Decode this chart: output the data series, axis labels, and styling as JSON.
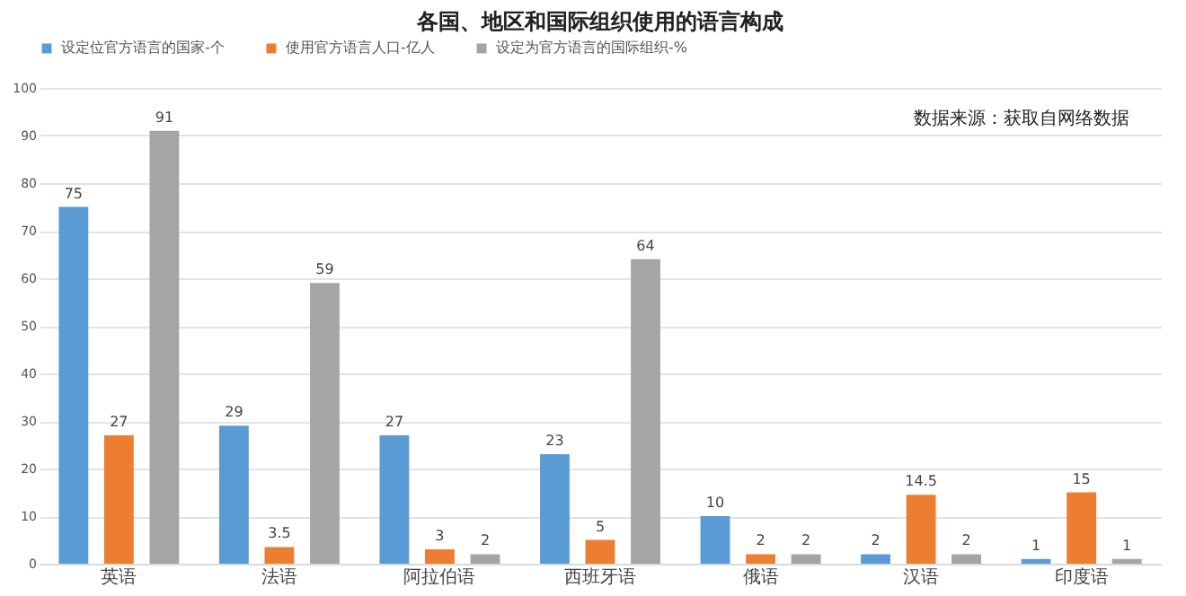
{
  "chart_data": {
    "type": "bar",
    "title": "各国、地区和国际组织使用的语言构成",
    "categories": [
      "英语",
      "法语",
      "阿拉伯语",
      "西班牙语",
      "俄语",
      "汉语",
      "印度语"
    ],
    "series": [
      {
        "name": "设定位官方语言的国家-个",
        "color": "#5b9bd5",
        "values": [
          75,
          29,
          27,
          23,
          10,
          2,
          1
        ]
      },
      {
        "name": "使用官方语言人口-亿人",
        "color": "#ed7d31",
        "values": [
          27,
          3.5,
          3,
          5,
          2,
          14.5,
          15
        ]
      },
      {
        "name": "设定为官方语言的国际组织-%",
        "color": "#a5a5a5",
        "values": [
          91,
          59,
          2,
          64,
          2,
          2,
          1
        ]
      }
    ],
    "ylim": [
      0,
      100
    ],
    "yticks": [
      0,
      10,
      20,
      30,
      40,
      50,
      60,
      70,
      80,
      90,
      100
    ],
    "grid": "y",
    "legend": "top",
    "data_labels": true,
    "annotations": [
      "数据来源：获取自网络数据"
    ]
  }
}
